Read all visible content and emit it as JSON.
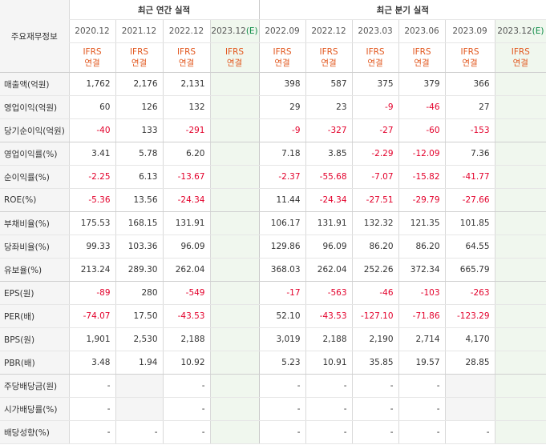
{
  "title_col": "주요재무정보",
  "groups": [
    {
      "label": "최근 연간 실적"
    },
    {
      "label": "최근 분기 실적"
    }
  ],
  "periods": [
    {
      "date": "2020.12",
      "est": ""
    },
    {
      "date": "2021.12",
      "est": ""
    },
    {
      "date": "2022.12",
      "est": ""
    },
    {
      "date": "2023.12",
      "est": "(E)"
    },
    {
      "date": "2022.09",
      "est": ""
    },
    {
      "date": "2022.12",
      "est": ""
    },
    {
      "date": "2023.03",
      "est": ""
    },
    {
      "date": "2023.06",
      "est": ""
    },
    {
      "date": "2023.09",
      "est": ""
    },
    {
      "date": "2023.12",
      "est": "(E)"
    }
  ],
  "ifrs_label": "IFRS",
  "consol_label": "연결",
  "rows": [
    {
      "label": "매출액(억원)",
      "values": [
        "1,762",
        "2,176",
        "2,131",
        "",
        "398",
        "587",
        "375",
        "379",
        "366",
        ""
      ]
    },
    {
      "label": "영업이익(억원)",
      "values": [
        "60",
        "126",
        "132",
        "",
        "29",
        "23",
        "-9",
        "-46",
        "27",
        ""
      ]
    },
    {
      "label": "당기순이익(억원)",
      "values": [
        "-40",
        "133",
        "-291",
        "",
        "-9",
        "-327",
        "-27",
        "-60",
        "-153",
        ""
      ]
    },
    {
      "label": "영업이익률(%)",
      "values": [
        "3.41",
        "5.78",
        "6.20",
        "",
        "7.18",
        "3.85",
        "-2.29",
        "-12.09",
        "7.36",
        ""
      ]
    },
    {
      "label": "순이익률(%)",
      "values": [
        "-2.25",
        "6.13",
        "-13.67",
        "",
        "-2.37",
        "-55.68",
        "-7.07",
        "-15.82",
        "-41.77",
        ""
      ]
    },
    {
      "label": "ROE(%)",
      "values": [
        "-5.36",
        "13.56",
        "-24.34",
        "",
        "11.44",
        "-24.34",
        "-27.51",
        "-29.79",
        "-27.66",
        ""
      ]
    },
    {
      "label": "부채비율(%)",
      "values": [
        "175.53",
        "168.15",
        "131.91",
        "",
        "106.17",
        "131.91",
        "132.32",
        "121.35",
        "101.85",
        ""
      ]
    },
    {
      "label": "당좌비율(%)",
      "values": [
        "99.33",
        "103.36",
        "96.09",
        "",
        "129.86",
        "96.09",
        "86.20",
        "86.20",
        "64.55",
        ""
      ]
    },
    {
      "label": "유보율(%)",
      "values": [
        "213.24",
        "289.30",
        "262.04",
        "",
        "368.03",
        "262.04",
        "252.26",
        "372.34",
        "665.79",
        ""
      ]
    },
    {
      "label": "EPS(원)",
      "values": [
        "-89",
        "280",
        "-549",
        "",
        "-17",
        "-563",
        "-46",
        "-103",
        "-263",
        ""
      ]
    },
    {
      "label": "PER(배)",
      "values": [
        "-74.07",
        "17.50",
        "-43.53",
        "",
        "52.10",
        "-43.53",
        "-127.10",
        "-71.86",
        "-123.29",
        ""
      ]
    },
    {
      "label": "BPS(원)",
      "values": [
        "1,901",
        "2,530",
        "2,188",
        "",
        "3,019",
        "2,188",
        "2,190",
        "2,714",
        "4,170",
        ""
      ]
    },
    {
      "label": "PBR(배)",
      "values": [
        "3.48",
        "1.94",
        "10.92",
        "",
        "5.23",
        "10.91",
        "35.85",
        "19.57",
        "28.85",
        ""
      ]
    },
    {
      "label": "주당배당금(원)",
      "values": [
        "-",
        null,
        "-",
        "",
        "-",
        "-",
        "-",
        "-",
        null,
        ""
      ]
    },
    {
      "label": "시가배당률(%)",
      "values": [
        "-",
        null,
        "-",
        "",
        "-",
        "-",
        "-",
        "-",
        null,
        ""
      ]
    },
    {
      "label": "배당성향(%)",
      "values": [
        "-",
        "-",
        "-",
        "",
        "-",
        "-",
        "-",
        "-",
        "-",
        ""
      ]
    }
  ],
  "colors": {
    "negative": "#e3002b",
    "ifrs": "#e2581f",
    "estimate": "#0a8a44",
    "estimate_bg": "#f0f7ee"
  }
}
